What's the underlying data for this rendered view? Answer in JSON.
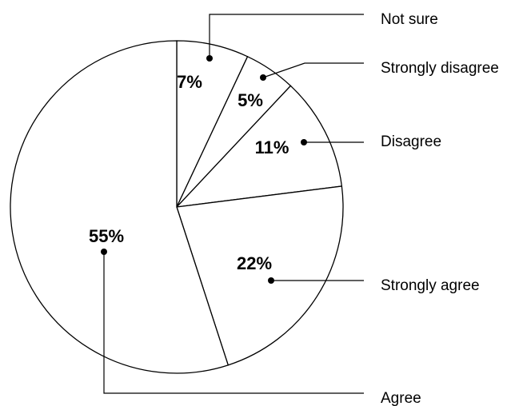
{
  "chart_data": {
    "type": "pie",
    "start_angle_deg": 0,
    "direction": "clockwise",
    "slices": [
      {
        "label": "Not sure",
        "value": 7,
        "value_label": "7%"
      },
      {
        "label": "Strongly disagree",
        "value": 5,
        "value_label": "5%"
      },
      {
        "label": "Disagree",
        "value": 11,
        "value_label": "11%"
      },
      {
        "label": "Strongly agree",
        "value": 22,
        "value_label": "22%"
      },
      {
        "label": "Agree",
        "value": 55,
        "value_label": "55%"
      }
    ],
    "colors": {
      "fill": "#ffffff",
      "stroke": "#000000"
    }
  }
}
